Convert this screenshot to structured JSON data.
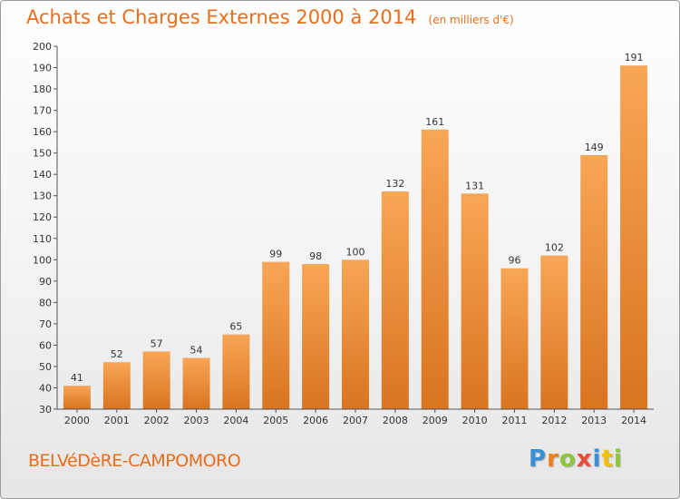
{
  "title": "Achats et Charges Externes 2000 à 2014",
  "subtitle": "(en milliers d'€)",
  "city": "BELVéDèRE-CAMPOMORO",
  "logo": {
    "letters": [
      "P",
      "r",
      "o",
      "x",
      "i",
      "t",
      "i"
    ],
    "colors": [
      "#3b8fd6",
      "#ef7f1a",
      "#8cc63e",
      "#e84c3d",
      "#3b8fd6",
      "#f2c200",
      "#8cc63e"
    ]
  },
  "colors": {
    "accent": "#ea6d1b",
    "bar_light": "#f8a656",
    "bar_dark": "#d9741f"
  },
  "chart_data": {
    "type": "bar",
    "categories": [
      "2000",
      "2001",
      "2002",
      "2003",
      "2004",
      "2005",
      "2006",
      "2007",
      "2008",
      "2009",
      "2010",
      "2011",
      "2012",
      "2013",
      "2014"
    ],
    "values": [
      41,
      52,
      57,
      54,
      65,
      99,
      98,
      100,
      132,
      161,
      131,
      96,
      102,
      149,
      191
    ],
    "title": "Achats et Charges Externes 2000 à 2014",
    "subtitle": "(en milliers d'€)",
    "xlabel": "",
    "ylabel": "",
    "ylim": [
      30,
      200
    ],
    "yticks": [
      30,
      40,
      50,
      60,
      70,
      80,
      90,
      100,
      110,
      120,
      130,
      140,
      150,
      160,
      170,
      180,
      190,
      200
    ],
    "grid": false,
    "legend": "none"
  }
}
